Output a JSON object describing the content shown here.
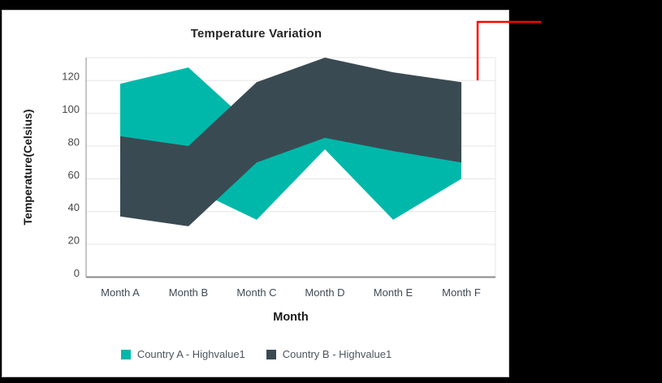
{
  "page": {
    "background": "#000000"
  },
  "window": {
    "background": "#ffffff",
    "border_color": "#bdbdbd"
  },
  "chart_data": {
    "type": "range-area",
    "title": "Temperature Variation",
    "xlabel": "Month",
    "ylabel": "Temperature(Celsius)",
    "categories": [
      "Month A",
      "Month B",
      "Month C",
      "Month D",
      "Month E",
      "Month F"
    ],
    "yticks": [
      0,
      20,
      40,
      60,
      80,
      100,
      120
    ],
    "ylim": [
      0,
      134
    ],
    "grid": true,
    "legend_position": "bottom",
    "series": [
      {
        "name": "Country A - Highvalue1",
        "color": "#00b8aa",
        "high": [
          118,
          128,
          90,
          95,
          85,
          75
        ],
        "low": [
          60,
          55,
          35,
          78,
          35,
          60
        ]
      },
      {
        "name": "Country B - Highvalue1",
        "color": "#3a4a52",
        "high": [
          86,
          80,
          119,
          134,
          125,
          119
        ],
        "low": [
          37,
          31,
          70,
          85,
          77,
          70
        ]
      }
    ],
    "colors": {
      "gridline": "#e6e6e6",
      "plot_border": "#e6e6e6",
      "y_axis_line": "#b3b3b3",
      "x_axis_line": "#8a8a8a",
      "tick_label": "#474747",
      "month_label": "#3f4a54",
      "title": "#262626",
      "axis_title": "#1a1a1a",
      "legend_text": "#4b555c"
    }
  },
  "annotation": {
    "type": "callout-line",
    "color": "#ff0000",
    "points": [
      [
        666,
        27
      ],
      [
        588,
        27
      ],
      [
        588,
        99
      ]
    ]
  }
}
